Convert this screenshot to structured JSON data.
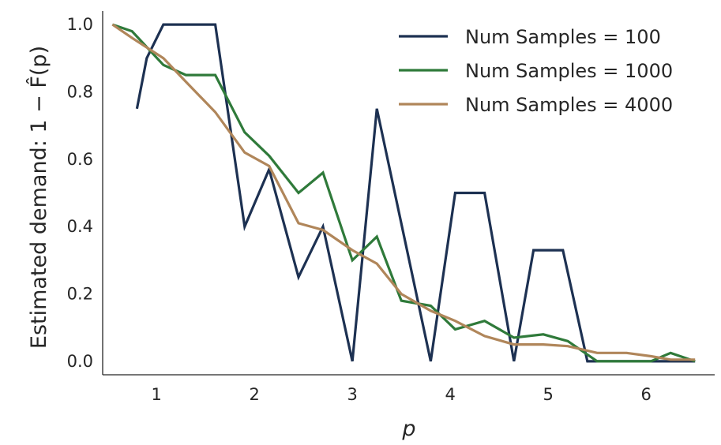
{
  "chart_data": {
    "type": "line",
    "xlabel": "p",
    "ylabel": "Estimated demand: 1 − F̂(p)",
    "xlim": [
      0.45,
      6.7
    ],
    "ylim": [
      -0.04,
      1.04
    ],
    "xticks": [
      1,
      2,
      3,
      4,
      5,
      6
    ],
    "yticks": [
      0.0,
      0.2,
      0.4,
      0.6,
      0.8,
      1.0
    ],
    "xtick_labels": [
      "1",
      "2",
      "3",
      "4",
      "5",
      "6"
    ],
    "ytick_labels": [
      "0.0",
      "0.2",
      "0.4",
      "0.6",
      "0.8",
      "1.0"
    ],
    "legend_position": "top-right",
    "grid": false,
    "series": [
      {
        "name": "Num Samples = 100",
        "color": "#1d3152",
        "points": [
          [
            0.8,
            0.75
          ],
          [
            0.9,
            0.9
          ],
          [
            1.07,
            1.0
          ],
          [
            1.6,
            1.0
          ],
          [
            1.65,
            0.9
          ],
          [
            1.9,
            0.4
          ],
          [
            2.15,
            0.57
          ],
          [
            2.45,
            0.25
          ],
          [
            2.7,
            0.4
          ],
          [
            3.0,
            0.0
          ],
          [
            3.25,
            0.75
          ],
          [
            3.8,
            0.0
          ],
          [
            4.05,
            0.5
          ],
          [
            4.35,
            0.5
          ],
          [
            4.65,
            0.0
          ],
          [
            4.85,
            0.33
          ],
          [
            5.15,
            0.33
          ],
          [
            5.4,
            0.0
          ],
          [
            5.8,
            0.0
          ],
          [
            6.2,
            0.0
          ],
          [
            6.5,
            0.0
          ]
        ]
      },
      {
        "name": "Num Samples = 1000",
        "color": "#2f7a3a",
        "points": [
          [
            0.55,
            1.0
          ],
          [
            0.75,
            0.98
          ],
          [
            1.07,
            0.88
          ],
          [
            1.3,
            0.85
          ],
          [
            1.6,
            0.85
          ],
          [
            1.9,
            0.68
          ],
          [
            2.15,
            0.61
          ],
          [
            2.45,
            0.5
          ],
          [
            2.7,
            0.56
          ],
          [
            3.0,
            0.3
          ],
          [
            3.25,
            0.37
          ],
          [
            3.5,
            0.18
          ],
          [
            3.8,
            0.165
          ],
          [
            4.05,
            0.095
          ],
          [
            4.35,
            0.12
          ],
          [
            4.65,
            0.07
          ],
          [
            4.95,
            0.08
          ],
          [
            5.2,
            0.06
          ],
          [
            5.5,
            0.0
          ],
          [
            5.8,
            0.0
          ],
          [
            6.05,
            0.0
          ],
          [
            6.25,
            0.025
          ],
          [
            6.5,
            0.0
          ]
        ]
      },
      {
        "name": "Num Samples = 4000",
        "color": "#b0865a",
        "points": [
          [
            0.55,
            1.0
          ],
          [
            0.75,
            0.96
          ],
          [
            1.07,
            0.9
          ],
          [
            1.3,
            0.83
          ],
          [
            1.6,
            0.74
          ],
          [
            1.9,
            0.62
          ],
          [
            2.15,
            0.58
          ],
          [
            2.45,
            0.41
          ],
          [
            2.7,
            0.39
          ],
          [
            3.0,
            0.33
          ],
          [
            3.25,
            0.29
          ],
          [
            3.5,
            0.2
          ],
          [
            3.8,
            0.15
          ],
          [
            4.05,
            0.12
          ],
          [
            4.35,
            0.075
          ],
          [
            4.65,
            0.05
          ],
          [
            4.95,
            0.05
          ],
          [
            5.2,
            0.045
          ],
          [
            5.5,
            0.025
          ],
          [
            5.8,
            0.025
          ],
          [
            6.05,
            0.015
          ],
          [
            6.25,
            0.005
          ],
          [
            6.5,
            0.005
          ]
        ]
      }
    ]
  }
}
